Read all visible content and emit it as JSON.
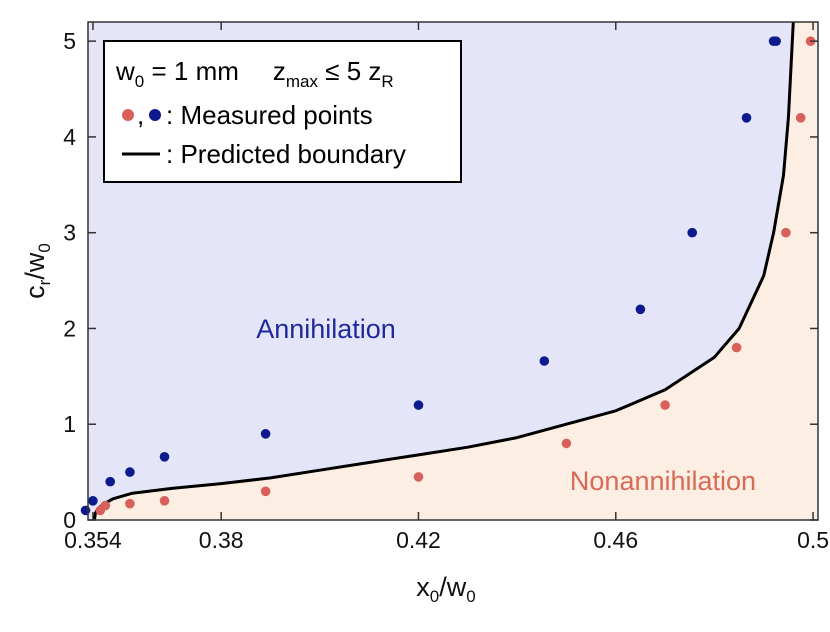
{
  "chart_data": {
    "type": "scatter",
    "title": "",
    "xlabel": "x0/w0",
    "ylabel": "cr/w0",
    "xlabel_parts": {
      "main": "x",
      "sub": "0",
      "slash": "/w",
      "sub2": "0"
    },
    "ylabel_parts": {
      "main": "c",
      "sub": "r",
      "slash": "/w",
      "sub2": "0"
    },
    "xlim": [
      0.353,
      0.501
    ],
    "ylim": [
      0,
      5.2
    ],
    "xticks": [
      0.354,
      0.38,
      0.42,
      0.46,
      0.5
    ],
    "xtick_labels": [
      "0.354",
      "0.38",
      "0.42",
      "0.46",
      "0.5"
    ],
    "yticks": [
      0,
      1,
      2,
      3,
      4,
      5
    ],
    "ytick_labels": [
      "0",
      "1",
      "2",
      "3",
      "4",
      "5"
    ],
    "grid": false,
    "regions": {
      "annihilation": {
        "label": "Annihilation",
        "color": "#e5e5fa",
        "text_color": "#1f2a9a"
      },
      "nonannihilation": {
        "label": "Nonannihilation",
        "color": "#fdeee3",
        "text_color": "#d86a56"
      }
    },
    "series": [
      {
        "name": "Measured points (annihilation)",
        "color": "#0c1a8e",
        "x": [
          0.3525,
          0.354,
          0.3575,
          0.3615,
          0.3685,
          0.389,
          0.42,
          0.4455,
          0.465,
          0.4755,
          0.4865,
          0.492,
          0.4925
        ],
        "y": [
          0.1,
          0.2,
          0.4,
          0.5,
          0.66,
          0.9,
          1.2,
          1.66,
          2.2,
          3.0,
          4.2,
          5.0,
          5.0
        ]
      },
      {
        "name": "Measured points (nonannihilation)",
        "color": "#d9605a",
        "x": [
          0.3555,
          0.3565,
          0.3615,
          0.3685,
          0.389,
          0.42,
          0.45,
          0.47,
          0.4845,
          0.4945,
          0.4975,
          0.4995
        ],
        "y": [
          0.1,
          0.15,
          0.17,
          0.2,
          0.3,
          0.45,
          0.8,
          1.2,
          1.8,
          3.0,
          4.2,
          5.0
        ]
      },
      {
        "name": "Predicted boundary",
        "color": "#000000",
        "x": [
          0.3543,
          0.3545,
          0.355,
          0.356,
          0.358,
          0.362,
          0.37,
          0.38,
          0.39,
          0.4,
          0.41,
          0.42,
          0.43,
          0.44,
          0.45,
          0.46,
          0.47,
          0.48,
          0.485,
          0.49,
          0.492,
          0.494,
          0.495,
          0.496
        ],
        "y": [
          0.0,
          0.07,
          0.12,
          0.16,
          0.22,
          0.28,
          0.33,
          0.38,
          0.44,
          0.52,
          0.6,
          0.68,
          0.76,
          0.86,
          1.0,
          1.14,
          1.36,
          1.7,
          2.0,
          2.55,
          3.0,
          3.6,
          4.2,
          5.2
        ]
      }
    ],
    "legend": {
      "line1": {
        "w": "w",
        "w_sub": "0",
        "eq": " = 1 mm",
        "z": "z",
        "z_sub": "max",
        "leq": " ≤ 5 z",
        "zr_sub": "R"
      },
      "entry_points": ": Measured points",
      "entry_points_sep": ",",
      "entry_line": ": Predicted boundary"
    }
  }
}
